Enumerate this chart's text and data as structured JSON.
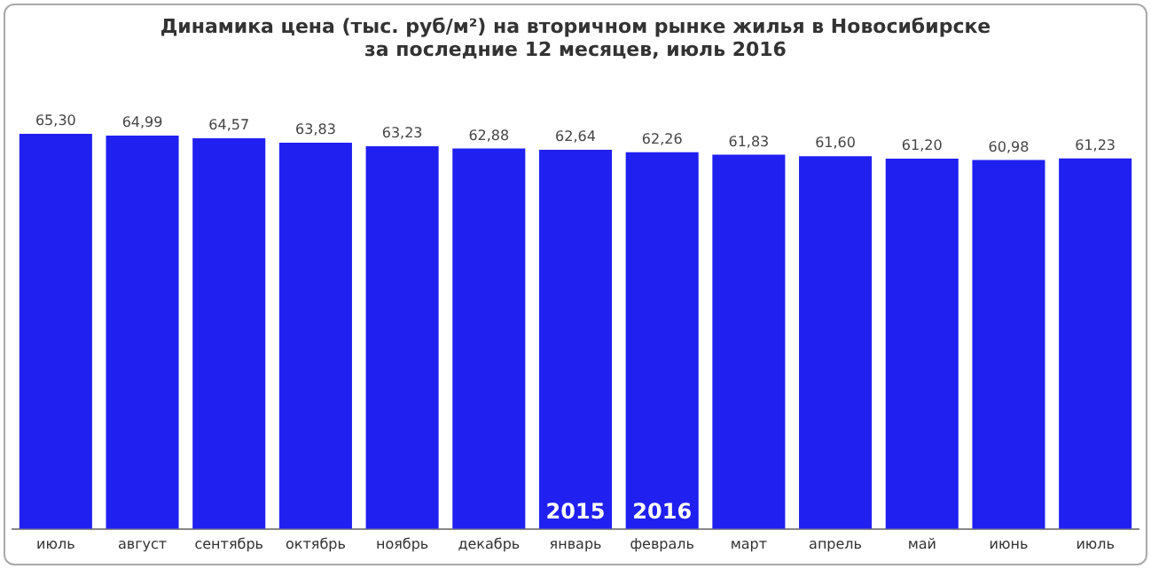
{
  "chart_data": {
    "type": "bar",
    "title": "Динамика цена (тыс. руб/м²) на вторичном рынке жилья в Новосибирске\nза последние 12 месяцев, июль 2016",
    "categories": [
      "июль",
      "август",
      "сентябрь",
      "октябрь",
      "ноябрь",
      "декабрь",
      "январь",
      "февраль",
      "март",
      "апрель",
      "май",
      "июнь",
      "июль"
    ],
    "values": [
      65.3,
      64.99,
      64.57,
      63.83,
      63.23,
      62.88,
      62.64,
      62.26,
      61.83,
      61.6,
      61.2,
      60.98,
      61.23
    ],
    "value_labels": [
      "65,30",
      "64,99",
      "64,57",
      "63,83",
      "63,23",
      "62,88",
      "62,64",
      "62,26",
      "61,83",
      "61,60",
      "61,20",
      "60,98",
      "61,23"
    ],
    "color": "#2020f0",
    "tick_labels": "x",
    "grid": false,
    "legend": false,
    "annotations": [
      "2015",
      "2016"
    ]
  }
}
